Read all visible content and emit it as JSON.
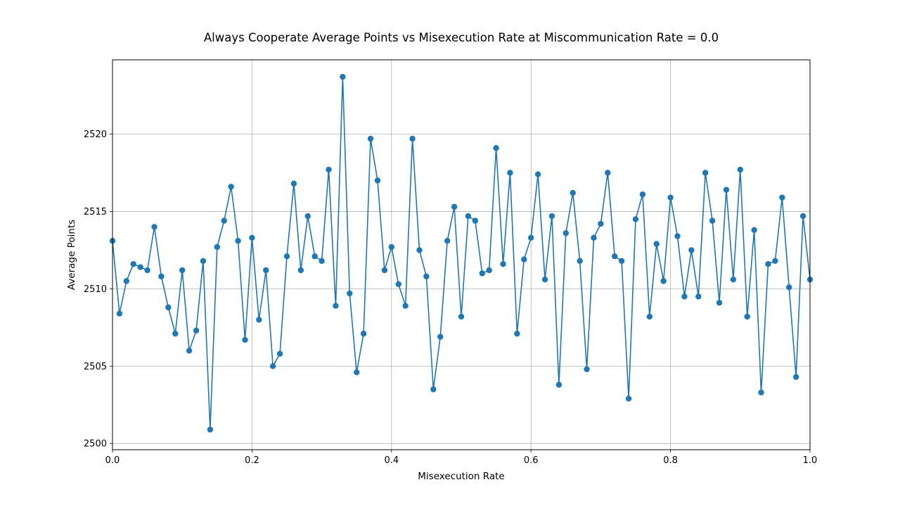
{
  "chart_data": {
    "type": "line",
    "title": "Always Cooperate Average Points vs Misexecution Rate at Miscommunication Rate = 0.0",
    "xlabel": "Misexecution Rate",
    "ylabel": "Average Points",
    "xlim": [
      0.0,
      1.0
    ],
    "ylim": [
      2499.6,
      2524.8
    ],
    "xticks": [
      0.0,
      0.2,
      0.4,
      0.6,
      0.8,
      1.0
    ],
    "xtick_labels": [
      "0.0",
      "0.2",
      "0.4",
      "0.6",
      "0.8",
      "1.0"
    ],
    "yticks": [
      2500,
      2505,
      2510,
      2515,
      2520
    ],
    "ytick_labels": [
      "2500",
      "2505",
      "2510",
      "2515",
      "2520"
    ],
    "grid": true,
    "markers": true,
    "color": "#1f77b4",
    "series": [
      {
        "x": [
          0.0,
          0.01,
          0.02,
          0.03,
          0.04,
          0.05,
          0.06,
          0.07,
          0.08,
          0.09,
          0.1,
          0.11,
          0.12,
          0.13,
          0.14,
          0.15,
          0.16,
          0.17,
          0.18,
          0.19,
          0.2,
          0.21,
          0.22,
          0.23,
          0.24,
          0.25,
          0.26,
          0.27,
          0.28,
          0.29,
          0.3,
          0.31,
          0.32,
          0.33,
          0.34,
          0.35,
          0.36,
          0.37,
          0.38,
          0.39,
          0.4,
          0.41,
          0.42,
          0.43,
          0.44,
          0.45,
          0.46,
          0.47,
          0.48,
          0.49,
          0.5,
          0.51,
          0.52,
          0.53,
          0.54,
          0.55,
          0.56,
          0.57,
          0.58,
          0.59,
          0.6,
          0.61,
          0.62,
          0.63,
          0.64,
          0.65,
          0.66,
          0.67,
          0.68,
          0.69,
          0.7,
          0.71,
          0.72,
          0.73,
          0.74,
          0.75,
          0.76,
          0.77,
          0.78,
          0.79,
          0.8,
          0.81,
          0.82,
          0.83,
          0.84,
          0.85,
          0.86,
          0.87,
          0.88,
          0.89,
          0.9,
          0.91,
          0.92,
          0.93,
          0.94,
          0.95,
          0.96,
          0.97,
          0.98,
          0.99,
          1.0
        ],
        "values": [
          2513.1,
          2508.4,
          2510.5,
          2511.6,
          2511.4,
          2511.2,
          2514.0,
          2510.8,
          2508.8,
          2507.1,
          2511.2,
          2506.0,
          2507.3,
          2511.8,
          2500.9,
          2512.7,
          2514.4,
          2516.6,
          2513.1,
          2506.7,
          2513.3,
          2508.0,
          2511.2,
          2505.0,
          2505.8,
          2512.1,
          2516.8,
          2511.2,
          2514.7,
          2512.1,
          2511.8,
          2517.7,
          2508.9,
          2523.7,
          2509.7,
          2504.6,
          2507.1,
          2519.7,
          2517.0,
          2511.2,
          2512.7,
          2510.3,
          2508.9,
          2519.7,
          2512.5,
          2510.8,
          2503.5,
          2506.9,
          2513.1,
          2515.3,
          2508.2,
          2514.7,
          2514.4,
          2511.0,
          2511.2,
          2519.1,
          2511.6,
          2517.5,
          2507.1,
          2511.9,
          2513.3,
          2517.4,
          2510.6,
          2514.7,
          2503.8,
          2513.6,
          2516.2,
          2511.8,
          2504.8,
          2513.3,
          2514.2,
          2517.5,
          2512.1,
          2511.8,
          2502.9,
          2514.5,
          2516.1,
          2508.2,
          2512.9,
          2510.5,
          2515.9,
          2513.4,
          2509.5,
          2512.5,
          2509.5,
          2517.5,
          2514.4,
          2509.1,
          2516.4,
          2510.6,
          2517.7,
          2508.2,
          2513.8,
          2503.3,
          2511.6,
          2511.8,
          2515.9,
          2510.1,
          2504.3,
          2514.7,
          2510.6
        ]
      }
    ]
  }
}
